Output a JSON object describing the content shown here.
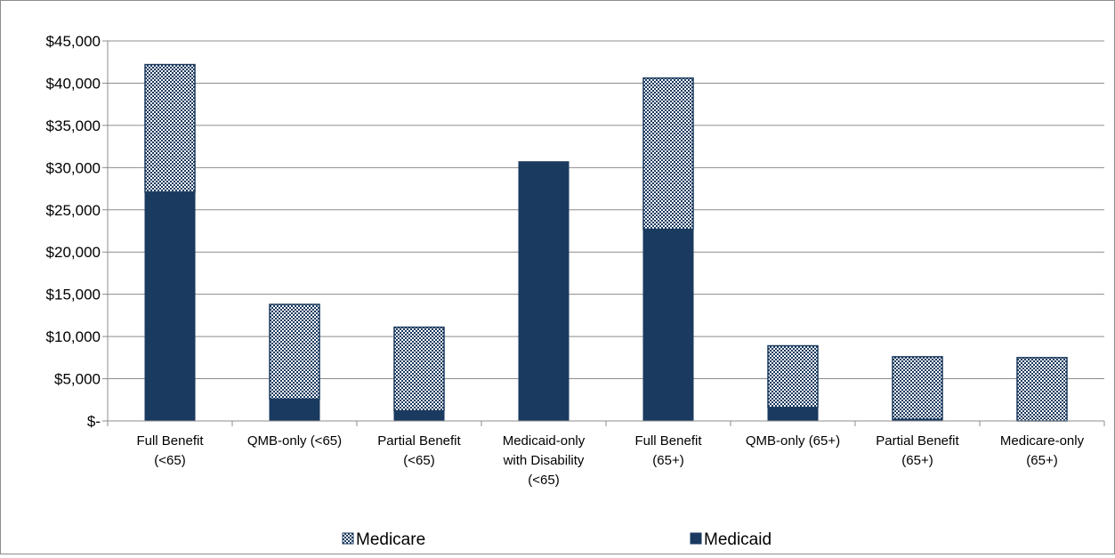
{
  "chart_data": {
    "type": "bar",
    "stacked": true,
    "categories": [
      [
        "Full Benefit",
        "(<65)"
      ],
      [
        "QMB-only (<65)"
      ],
      [
        "Partial Benefit",
        "(<65)"
      ],
      [
        "Medicaid-only",
        "with Disability",
        "(<65)"
      ],
      [
        "Full Benefit",
        "(65+)"
      ],
      [
        "QMB-only (65+)"
      ],
      [
        "Partial Benefit",
        "(65+)"
      ],
      [
        "Medicare-only",
        "(65+)"
      ]
    ],
    "series": [
      {
        "name": "Medicaid",
        "color": "#1a3a5f",
        "pattern": "solid",
        "values": [
          27100,
          2600,
          1200,
          30700,
          22700,
          1600,
          200,
          0
        ]
      },
      {
        "name": "Medicare",
        "color": "#1a3a5f",
        "pattern": "dotted-crosshatch",
        "values": [
          15100,
          11200,
          9900,
          0,
          17900,
          7300,
          7400,
          7500
        ]
      }
    ],
    "yticks": [
      "$-",
      "$5,000",
      "$10,000",
      "$15,000",
      "$20,000",
      "$25,000",
      "$30,000",
      "$35,000",
      "$40,000",
      "$45,000"
    ],
    "ylim": [
      0,
      45000
    ],
    "grid": true,
    "legend": {
      "position": "bottom",
      "entries": [
        "Medicare",
        "Medicaid"
      ]
    }
  }
}
